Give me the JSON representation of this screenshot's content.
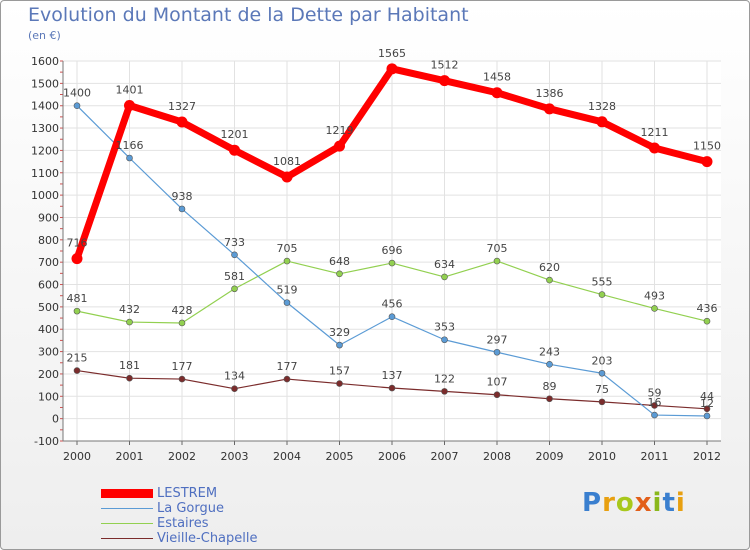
{
  "title": "Evolution du Montant de la Dette par Habitant",
  "subtitle": "(en €)",
  "brand": "Proxiti",
  "brand_colors": [
    "#3a7fcf",
    "#e8a010",
    "#a8c81c",
    "#e25f1a",
    "#8ab81c",
    "#3a7fcf",
    "#e8a010"
  ],
  "chart_data": {
    "type": "line",
    "x": [
      "2000",
      "2001",
      "2002",
      "2003",
      "2004",
      "2005",
      "2006",
      "2007",
      "2008",
      "2009",
      "2010",
      "2011",
      "2012"
    ],
    "ylim": [
      -100,
      1600
    ],
    "yticks": [
      -100,
      0,
      100,
      200,
      300,
      400,
      500,
      600,
      700,
      800,
      900,
      1000,
      1100,
      1200,
      1300,
      1400,
      1500,
      1600
    ],
    "grid": true,
    "legend_position": "bottom-left",
    "series": [
      {
        "name": "LESTREM",
        "color": "#ff0000",
        "values": [
          716,
          1401,
          1327,
          1201,
          1081,
          1219,
          1565,
          1512,
          1458,
          1386,
          1328,
          1211,
          1150
        ],
        "labels": [
          "716",
          "1401",
          "1327",
          "1201",
          "1081",
          "1219",
          "1565",
          "1512",
          "1458",
          "1386",
          "1328",
          "1211",
          "1150"
        ]
      },
      {
        "name": "La Gorgue",
        "color": "#5b9bd5",
        "values": [
          1400,
          1166,
          938,
          733,
          519,
          329,
          456,
          353,
          297,
          243,
          203,
          16,
          12
        ],
        "labels": [
          "1400",
          "1166",
          "938",
          "733",
          "519",
          "329",
          "456",
          "353",
          "297",
          "243",
          "203",
          "16",
          "12"
        ]
      },
      {
        "name": "Estaires",
        "color": "#92d050",
        "values": [
          481,
          432,
          428,
          581,
          705,
          648,
          696,
          634,
          705,
          620,
          555,
          493,
          436
        ],
        "labels": [
          "481",
          "432",
          "428",
          "581",
          "705",
          "648",
          "696",
          "634",
          "705",
          "620",
          "555",
          "493",
          "436"
        ]
      },
      {
        "name": "Vieille-Chapelle",
        "color": "#7b2c2c",
        "values": [
          215,
          181,
          177,
          134,
          177,
          157,
          137,
          122,
          107,
          89,
          75,
          59,
          44
        ],
        "labels": [
          "215",
          "181",
          "177",
          "134",
          "177",
          "157",
          "137",
          "122",
          "107",
          "89",
          "75",
          "59",
          "44"
        ]
      }
    ]
  }
}
